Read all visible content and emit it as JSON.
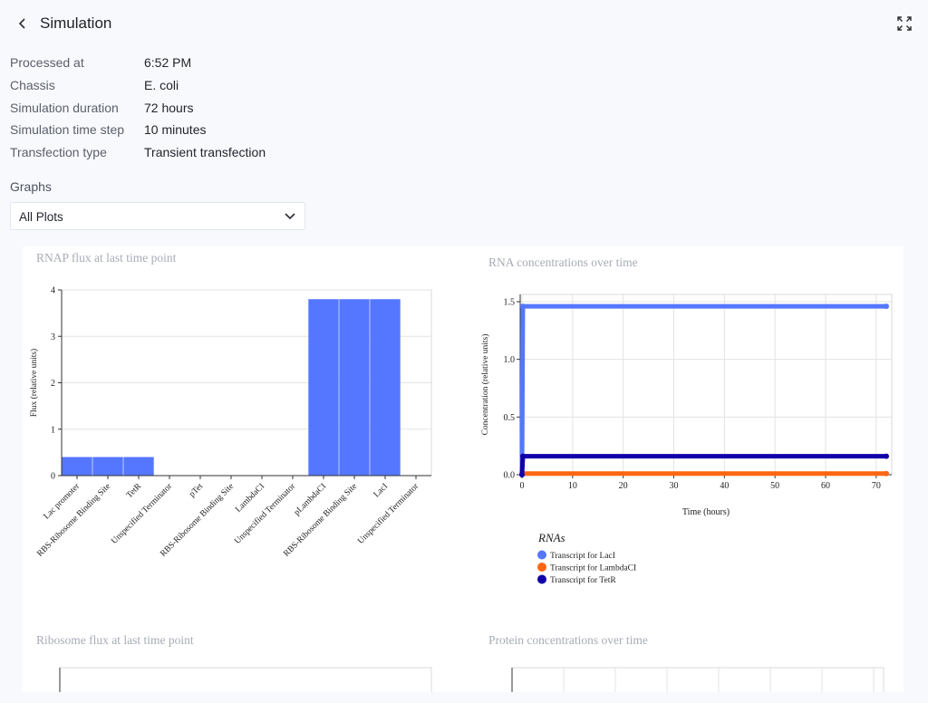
{
  "header": {
    "title": "Simulation",
    "back_icon": "chevron-left-icon",
    "fullscreen_icon": "expand-icon"
  },
  "details": [
    {
      "label": "Processed at",
      "value": "6:52 PM"
    },
    {
      "label": "Chassis",
      "value": "E. coli"
    },
    {
      "label": "Simulation duration",
      "value": "72 hours"
    },
    {
      "label": "Simulation time step",
      "value": "10 minutes"
    },
    {
      "label": "Transfection type",
      "value": "Transient transfection"
    }
  ],
  "graphs": {
    "label": "Graphs",
    "selected": "All Plots",
    "dropdown_icon": "chevron-down-icon"
  },
  "colors": {
    "bar": "#5577ff",
    "lacI": "#5577ff",
    "lambdaCI": "#ff6611",
    "tetR": "#1100aa",
    "title": "#a7acb6"
  },
  "chart_data": [
    {
      "type": "bar",
      "title": "RNAP flux at last time point",
      "ylabel": "Flux (relative units)",
      "xlabel": "",
      "ylim": [
        0,
        4
      ],
      "yticks": [
        "0",
        "1",
        "2",
        "3",
        "4"
      ],
      "categories": [
        "Lac promoter",
        "RBS-Ribosome Binding Site",
        "TetR",
        "Unspecified Terminator",
        "pTet",
        "RBS-Ribosome Binding Site",
        "LambdaCI",
        "Unspecified Terminator",
        "pLambdaCI",
        "RBS-Ribosome Binding Site",
        "LacI",
        "Unspecified Terminator"
      ],
      "values": [
        0.4,
        0.4,
        0.4,
        0,
        0,
        0,
        0,
        0,
        3.8,
        3.8,
        3.8,
        0
      ],
      "grid": true
    },
    {
      "type": "line",
      "title": "RNA concentrations over time",
      "xlabel": "Time (hours)",
      "ylabel": "Concentration (relative units)",
      "xlim": [
        0,
        72
      ],
      "ylim": [
        0,
        1.5
      ],
      "xticks": [
        "0",
        "10",
        "20",
        "30",
        "40",
        "50",
        "60",
        "70"
      ],
      "yticks": [
        "0.0",
        "0.5",
        "1.0",
        "1.5"
      ],
      "legend_title": "RNAs",
      "legend_position": "bottom-left",
      "series": [
        {
          "name": "Transcript for LacI",
          "color_key": "lacI",
          "x": [
            0,
            0.17,
            72
          ],
          "y": [
            0,
            1.46,
            1.46
          ]
        },
        {
          "name": "Transcript for LambdaCI",
          "color_key": "lambdaCI",
          "x": [
            0,
            72
          ],
          "y": [
            0.01,
            0.01
          ]
        },
        {
          "name": "Transcript for TetR",
          "color_key": "tetR",
          "x": [
            0,
            0.17,
            72
          ],
          "y": [
            0,
            0.16,
            0.16
          ]
        }
      ],
      "grid": true
    },
    {
      "type": "bar",
      "title": "Ribosome flux at last time point"
    },
    {
      "type": "line",
      "title": "Protein concentrations over time"
    }
  ]
}
